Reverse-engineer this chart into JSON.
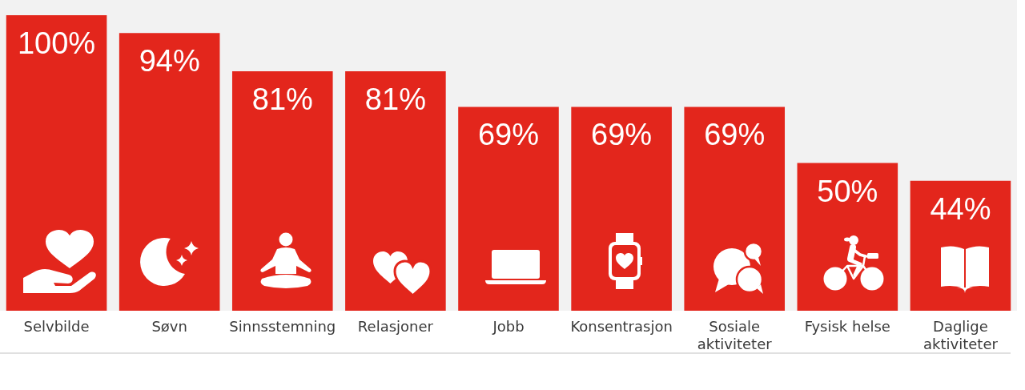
{
  "chart_data": {
    "type": "bar",
    "categories": [
      "Selvbilde",
      "Søvn",
      "Sinnsstemning",
      "Relasjoner",
      "Jobb",
      "Konsentrasjon",
      "Sosiale aktiviteter",
      "Fysisk helse",
      "Daglige aktiviteter"
    ],
    "values": [
      100,
      94,
      81,
      81,
      69,
      69,
      69,
      50,
      44
    ],
    "color": "#e3261c",
    "value_labels": [
      "100%",
      "94%",
      "81%",
      "81%",
      "69%",
      "69%",
      "69%",
      "50%",
      "44%"
    ],
    "tick_labels": "x"
  }
}
